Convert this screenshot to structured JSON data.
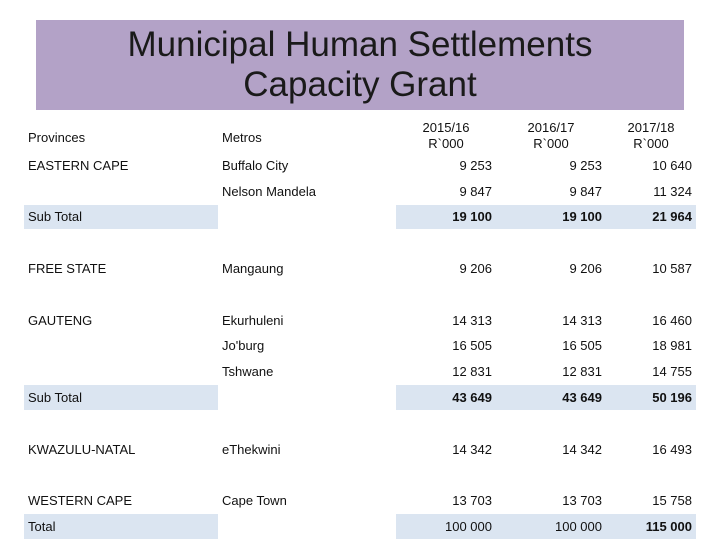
{
  "title": {
    "line1": "Municipal Human Settlements",
    "line2": "Capacity Grant"
  },
  "headers": {
    "provinces": "Provinces",
    "metros": "Metros",
    "y1_year": "2015/16",
    "y1_unit": "R`000",
    "y2_year": "2016/17",
    "y2_unit": "R`000",
    "y3_year": "2017/18",
    "y3_unit": "R`000"
  },
  "rows": [
    {
      "province": "EASTERN CAPE",
      "metro": "Buffalo City",
      "y1": "9 253",
      "y2": "9 253",
      "y3": "10 640"
    },
    {
      "province": "",
      "metro": "Nelson Mandela",
      "y1": "9 847",
      "y2": "9 847",
      "y3": "11 324"
    },
    {
      "province": "Sub Total",
      "metro": "",
      "y1": "19 100",
      "y2": "19 100",
      "y3": "21 964"
    },
    {
      "province": "FREE STATE",
      "metro": "Mangaung",
      "y1": "9 206",
      "y2": "9 206",
      "y3": "10 587"
    },
    {
      "province": "GAUTENG",
      "metro": "Ekurhuleni",
      "y1": "14 313",
      "y2": "14 313",
      "y3": "16 460"
    },
    {
      "province": "",
      "metro": "Jo'burg",
      "y1": "16 505",
      "y2": "16 505",
      "y3": "18 981"
    },
    {
      "province": "",
      "metro": "Tshwane",
      "y1": "12 831",
      "y2": "12 831",
      "y3": "14 755"
    },
    {
      "province": "Sub Total",
      "metro": "",
      "y1": "43 649",
      "y2": "43 649",
      "y3": "50 196"
    },
    {
      "province": "KWAZULU-NATAL",
      "metro": "eThekwini",
      "y1": "14 342",
      "y2": "14 342",
      "y3": "16 493"
    },
    {
      "province": "WESTERN CAPE",
      "metro": "Cape Town",
      "y1": "13 703",
      "y2": "13 703",
      "y3": "15 758"
    },
    {
      "province": "Total",
      "metro": "",
      "y1": "100 000",
      "y2": "100 000",
      "y3": "115 000"
    }
  ],
  "colors": {
    "title_bg": "#b3a2c7",
    "subtotal_bg": "#dbe5f1"
  }
}
